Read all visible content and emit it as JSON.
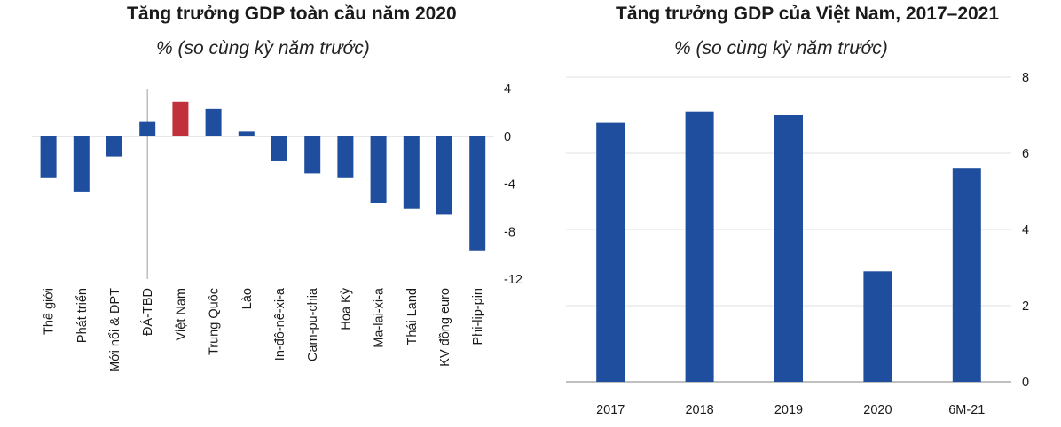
{
  "chart_data": [
    {
      "type": "bar",
      "title": "Tăng trưởng GDP toàn cầu năm 2020",
      "subtitle": "% (so cùng kỳ năm trước)",
      "categories": [
        "Thế giới",
        "Phát triển",
        "Mới nổi & ĐPT",
        "ĐÁ-TBD",
        "Việt Nam",
        "Trung Quốc",
        "Lào",
        "In-đô-nê-xi-a",
        "Cam-pu-chia",
        "Hoa Kỳ",
        "Ma-lai-xi-a",
        "Thái Land",
        "KV đồng euro",
        "Phi-lip-pin"
      ],
      "values": [
        -3.5,
        -4.7,
        -1.7,
        1.2,
        2.9,
        2.3,
        0.4,
        -2.1,
        -3.1,
        -3.5,
        -5.6,
        -6.1,
        -6.6,
        -9.6
      ],
      "highlight_category": "Việt Nam",
      "bar_color": "#1f4e9e",
      "highlight_color": "#c0313b",
      "yticks": [
        "4",
        "0",
        "-4",
        "-8",
        "-12"
      ],
      "ylim": [
        -12,
        4
      ],
      "axis_position": "right"
    },
    {
      "type": "bar",
      "title": "Tăng trưởng GDP của Việt Nam, 2017–2021",
      "subtitle": "% (so cùng kỳ năm trước)",
      "categories": [
        "2017",
        "2018",
        "2019",
        "2020",
        "6M-21"
      ],
      "values": [
        6.8,
        7.1,
        7.0,
        2.9,
        5.6
      ],
      "bar_color": "#1f4e9e",
      "yticks": [
        "0",
        "2",
        "4",
        "6",
        "8"
      ],
      "ylim": [
        0,
        8
      ],
      "grid": true,
      "axis_position": "right"
    }
  ]
}
